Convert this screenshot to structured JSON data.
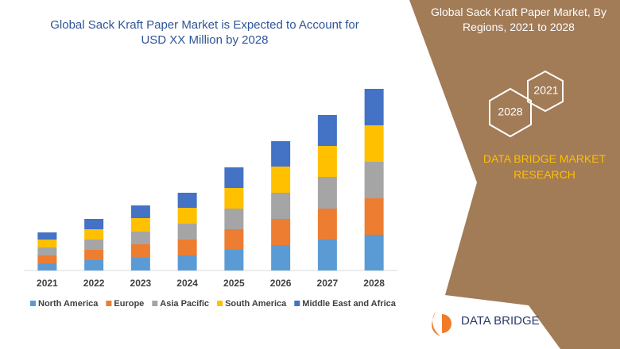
{
  "chart_data": {
    "type": "bar",
    "stacked": true,
    "title": "Global Sack Kraft Paper Market is Expected to Account for USD XX Million by 2028",
    "categories": [
      "2021",
      "2022",
      "2023",
      "2024",
      "2025",
      "2026",
      "2027",
      "2028"
    ],
    "series": [
      {
        "name": "North America",
        "color": "#5b9bd5",
        "values": [
          9,
          13,
          16,
          19,
          26,
          32,
          39,
          45
        ]
      },
      {
        "name": "Europe",
        "color": "#ed7d31",
        "values": [
          10,
          13,
          17,
          20,
          26,
          33,
          39,
          46
        ]
      },
      {
        "name": "Asia Pacific",
        "color": "#a5a5a5",
        "values": [
          10,
          13,
          16,
          20,
          26,
          33,
          40,
          46
        ]
      },
      {
        "name": "South America",
        "color": "#ffc000",
        "values": [
          10,
          13,
          17,
          20,
          26,
          33,
          39,
          46
        ]
      },
      {
        "name": "Middle East and Africa",
        "color": "#4472c4",
        "values": [
          9,
          13,
          16,
          19,
          26,
          32,
          39,
          46
        ]
      }
    ],
    "ylim": [
      0,
      240
    ],
    "legend": "bottom"
  },
  "side_panel": {
    "title": "Global Sack Kraft Paper Market, By Regions, 2021 to 2028",
    "hex_years": [
      "2021",
      "2028"
    ],
    "brand": "DATA BRIDGE MARKET RESEARCH"
  },
  "logo": "DATA BRIDGE"
}
